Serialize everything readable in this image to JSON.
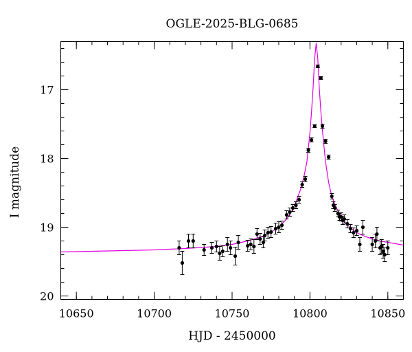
{
  "chart_data": {
    "type": "scatter",
    "title": "OGLE-2025-BLG-0685",
    "xlabel": "HJD - 2450000",
    "ylabel": "I magnitude",
    "xlim": [
      10640,
      10860
    ],
    "ylim": [
      20.05,
      16.3
    ],
    "y_inverted": true,
    "x_major_ticks": [
      10650,
      10700,
      10750,
      10800,
      10850
    ],
    "x_tick_labels": [
      "10650",
      "10700",
      "10750",
      "10800",
      "10850"
    ],
    "x_minor_step": 10,
    "y_major_ticks": [
      17,
      18,
      19,
      20
    ],
    "y_tick_labels": [
      "17",
      "18",
      "19",
      "20"
    ],
    "y_minor_step": 0.2,
    "grid": false,
    "colors": {
      "points": "#000000",
      "model": "#e000e0"
    },
    "series": [
      {
        "kind": "observations",
        "x": [
          10716,
          10718,
          10722,
          10725,
          10732,
          10737,
          10740,
          10742,
          10744,
          10747,
          10749,
          10752,
          10754,
          10760,
          10762,
          10764,
          10766,
          10768,
          10770,
          10771,
          10773,
          10775,
          10778,
          10780,
          10782,
          10785,
          10787,
          10789,
          10791,
          10793,
          10795,
          10797,
          10799,
          10801,
          10803,
          10805,
          10807,
          10808,
          10810,
          10812,
          10814,
          10815,
          10816,
          10818,
          10819,
          10820,
          10821,
          10822,
          10824,
          10826,
          10828,
          10830,
          10832,
          10834,
          10840,
          10842,
          10843,
          10845,
          10846,
          10847,
          10848,
          10850
        ],
        "y": [
          19.3,
          19.52,
          19.2,
          19.2,
          19.33,
          19.3,
          19.28,
          19.38,
          19.35,
          19.25,
          19.3,
          19.42,
          19.22,
          19.27,
          19.25,
          19.28,
          19.1,
          19.17,
          19.22,
          19.12,
          19.08,
          19.07,
          19.02,
          19.0,
          18.97,
          18.82,
          18.78,
          18.72,
          18.68,
          18.6,
          18.38,
          18.3,
          17.88,
          17.73,
          17.53,
          16.66,
          16.83,
          17.53,
          17.75,
          17.98,
          18.55,
          18.68,
          18.72,
          18.8,
          18.85,
          18.85,
          18.9,
          18.88,
          18.95,
          19.02,
          19.08,
          19.05,
          19.25,
          19.0,
          19.25,
          19.2,
          19.1,
          19.3,
          19.28,
          19.35,
          19.4,
          19.3
        ],
        "err": [
          0.1,
          0.17,
          0.1,
          0.1,
          0.08,
          0.08,
          0.08,
          0.1,
          0.08,
          0.1,
          0.1,
          0.13,
          0.1,
          0.08,
          0.08,
          0.1,
          0.08,
          0.08,
          0.08,
          0.08,
          0.08,
          0.08,
          0.08,
          0.08,
          0.06,
          0.06,
          0.06,
          0.05,
          0.05,
          0.05,
          0.04,
          0.04,
          0.03,
          0.03,
          0.02,
          0.02,
          0.02,
          0.03,
          0.03,
          0.03,
          0.04,
          0.05,
          0.05,
          0.05,
          0.05,
          0.06,
          0.06,
          0.06,
          0.06,
          0.06,
          0.07,
          0.07,
          0.1,
          0.1,
          0.1,
          0.1,
          0.1,
          0.1,
          0.1,
          0.1,
          0.1,
          0.1
        ]
      },
      {
        "kind": "model",
        "type": "line",
        "x": [
          10640,
          10660,
          10680,
          10700,
          10720,
          10740,
          10750,
          10760,
          10770,
          10775,
          10780,
          10785,
          10788,
          10791,
          10794,
          10796,
          10798,
          10800,
          10801,
          10802,
          10803,
          10804,
          10805,
          10806,
          10807,
          10808,
          10810,
          10812,
          10814,
          10817,
          10820,
          10823,
          10826,
          10830,
          10835,
          10840,
          10845,
          10850,
          10855,
          10860
        ],
        "y": [
          19.36,
          19.35,
          19.34,
          19.33,
          19.31,
          19.28,
          19.25,
          19.2,
          19.13,
          19.07,
          19.0,
          18.88,
          18.78,
          18.63,
          18.45,
          18.28,
          18.05,
          17.62,
          17.32,
          16.98,
          16.55,
          16.32,
          16.55,
          16.98,
          17.32,
          17.6,
          18.05,
          18.35,
          18.55,
          18.72,
          18.84,
          18.94,
          19.01,
          19.08,
          19.13,
          19.17,
          19.2,
          19.22,
          19.24,
          19.26
        ]
      }
    ]
  }
}
